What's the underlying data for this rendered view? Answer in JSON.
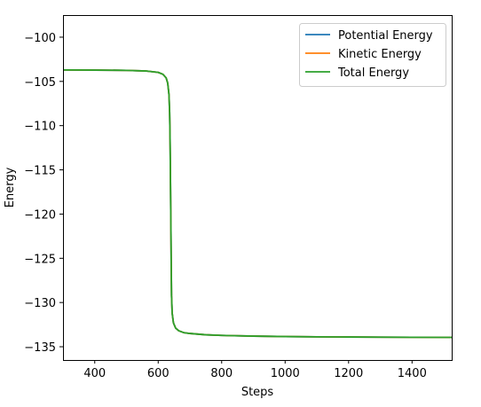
{
  "chart_data": {
    "type": "line",
    "title": "",
    "xlabel": "Steps",
    "ylabel": "Energy",
    "xlim": [
      300,
      1525
    ],
    "ylim": [
      -136.5,
      -97.5
    ],
    "xticks": [
      400,
      600,
      800,
      1000,
      1200,
      1400
    ],
    "yticks": [
      -100,
      -105,
      -110,
      -115,
      -120,
      -125,
      -130,
      -135
    ],
    "grid": false,
    "legend_position": "top-right",
    "series": [
      {
        "name": "Potential Energy",
        "color": "#1f77b4",
        "x": [
          300,
          400,
          500,
          560,
          600,
          615,
          625,
          630,
          634,
          636,
          637,
          638,
          639,
          640,
          641,
          642,
          644,
          648,
          655,
          665,
          680,
          700,
          750,
          800,
          900,
          1000,
          1100,
          1200,
          1300,
          1400,
          1525
        ],
        "y": [
          -103.7,
          -103.72,
          -103.75,
          -103.82,
          -103.98,
          -104.2,
          -104.6,
          -105.2,
          -106.5,
          -108.5,
          -110.5,
          -113.5,
          -117.5,
          -121.5,
          -125.5,
          -129.2,
          -131.2,
          -132.3,
          -132.9,
          -133.2,
          -133.4,
          -133.5,
          -133.65,
          -133.72,
          -133.8,
          -133.85,
          -133.88,
          -133.9,
          -133.92,
          -133.93,
          -133.94
        ]
      },
      {
        "name": "Kinetic Energy",
        "color": "#ff7f0e",
        "x": [
          300,
          400,
          500,
          560,
          600,
          615,
          625,
          630,
          634,
          636,
          637,
          638,
          639,
          640,
          641,
          642,
          644,
          648,
          655,
          665,
          680,
          700,
          750,
          800,
          900,
          1000,
          1100,
          1200,
          1300,
          1400,
          1525
        ],
        "y": [
          -103.7,
          -103.72,
          -103.75,
          -103.82,
          -103.98,
          -104.2,
          -104.6,
          -105.2,
          -106.5,
          -108.5,
          -110.5,
          -113.5,
          -117.5,
          -121.5,
          -125.5,
          -129.2,
          -131.2,
          -132.3,
          -132.9,
          -133.2,
          -133.4,
          -133.5,
          -133.65,
          -133.72,
          -133.8,
          -133.85,
          -133.88,
          -133.9,
          -133.92,
          -133.93,
          -133.94
        ]
      },
      {
        "name": "Total Energy",
        "color": "#2ca02c",
        "x": [
          300,
          400,
          500,
          560,
          600,
          615,
          625,
          630,
          634,
          636,
          637,
          638,
          639,
          640,
          641,
          642,
          644,
          648,
          655,
          665,
          680,
          700,
          750,
          800,
          900,
          1000,
          1100,
          1200,
          1300,
          1400,
          1525
        ],
        "y": [
          -103.7,
          -103.72,
          -103.75,
          -103.82,
          -103.98,
          -104.2,
          -104.6,
          -105.2,
          -106.5,
          -108.5,
          -110.5,
          -113.5,
          -117.5,
          -121.5,
          -125.5,
          -129.2,
          -131.2,
          -132.3,
          -132.9,
          -133.2,
          -133.4,
          -133.5,
          -133.65,
          -133.72,
          -133.8,
          -133.85,
          -133.88,
          -133.9,
          -133.92,
          -133.93,
          -133.94
        ]
      }
    ]
  }
}
